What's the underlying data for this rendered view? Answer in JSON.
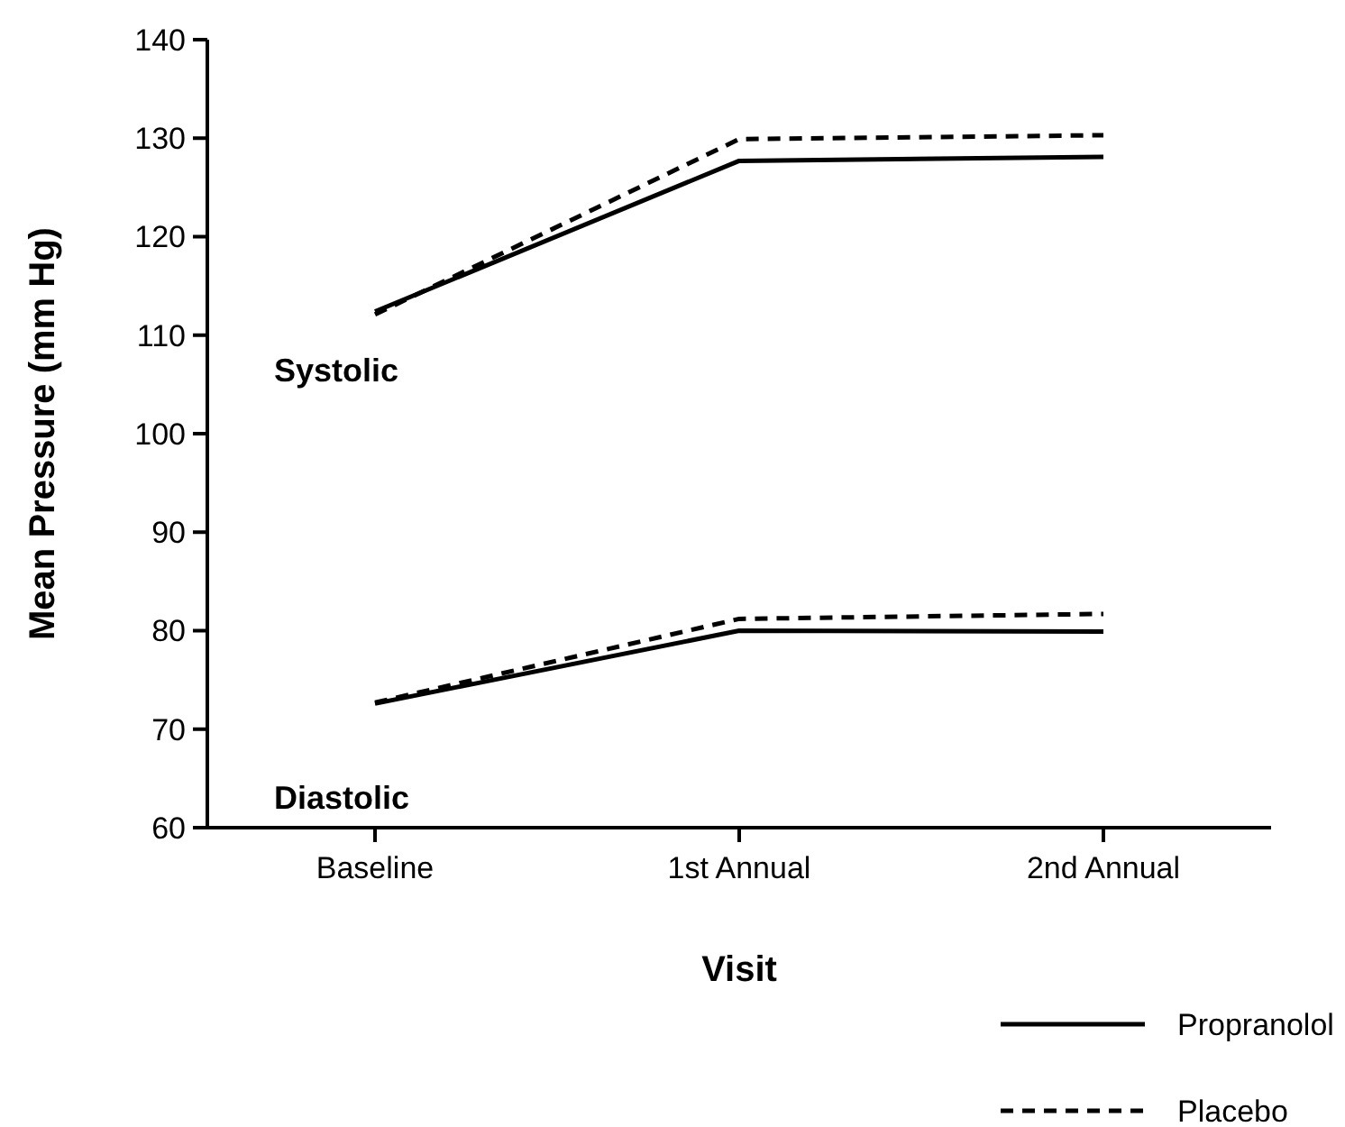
{
  "chart_data": {
    "type": "line",
    "xlabel": "Visit",
    "ylabel": "Mean Pressure (mm Hg)",
    "categories": [
      "Baseline",
      "1st Annual",
      "2nd Annual"
    ],
    "series": [
      {
        "name": "Propranolol",
        "color": "#000000",
        "line_style": "solid",
        "values": [
          112.4,
          127.7,
          128.1
        ]
      },
      {
        "name": "Placebo",
        "color": "#000000",
        "line_style": "dashed",
        "values": [
          112.1,
          129.9,
          130.3
        ]
      },
      {
        "color": "#000000",
        "line_style": "solid",
        "values": [
          72.6,
          80.0,
          79.9
        ]
      },
      {
        "color": "#000000",
        "line_style": "dashed",
        "values": [
          72.7,
          81.2,
          81.7
        ]
      }
    ],
    "annotations": [
      "Systolic",
      "Diastolic"
    ],
    "ylim": [
      60,
      140
    ],
    "yticks": [
      60,
      70,
      80,
      90,
      100,
      110,
      120,
      130,
      140
    ],
    "grid": false,
    "legend": "bottom right",
    "marker": "none"
  }
}
